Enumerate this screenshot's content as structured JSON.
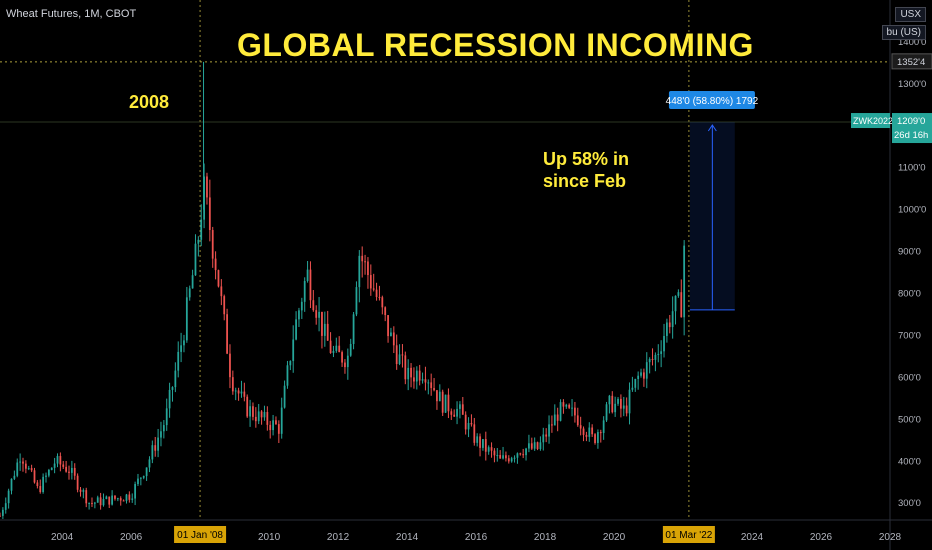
{
  "header": {
    "symbol_title": "Wheat Futures, 1M, CBOT",
    "currency": "USX",
    "unit": "bu (US)"
  },
  "annotations": {
    "title": "GLOBAL RECESSION INCOMING",
    "label_2008": "2008",
    "up_line1": "Up 58% in",
    "up_line2": "since Feb",
    "measure_label": "448'0 (58.80%) 1792"
  },
  "price_tags": {
    "hline_price": "1352'4",
    "last_price": "1209'0",
    "ticker": "ZWK2022",
    "countdown": "26d 16h"
  },
  "colors": {
    "up": "#26a69a",
    "down": "#ef5350",
    "accent": "#ffeb3b",
    "measure": "#2962ff",
    "grid_line": "#d8c64c"
  },
  "chart_data": {
    "type": "candlestick",
    "title": "GLOBAL RECESSION INCOMING",
    "xlabel": "",
    "ylabel": "",
    "x_ticks": [
      "2004",
      "2006",
      "2008",
      "2010",
      "2012",
      "2014",
      "2016",
      "2018",
      "2020",
      "2022",
      "2024",
      "2026",
      "2028"
    ],
    "x_tick_years": [
      2004,
      2006,
      2008,
      2010,
      2012,
      2014,
      2016,
      2018,
      2020,
      2022,
      2024,
      2026,
      2028
    ],
    "x_highlight_labels": [
      "01 Jan '08",
      "01 Mar '22"
    ],
    "x_highlight_years": [
      2008.0,
      2022.17
    ],
    "y_ticks": [
      "300'0",
      "400'0",
      "500'0",
      "600'0",
      "700'0",
      "800'0",
      "900'0",
      "1000'0",
      "1100'0",
      "1200'0",
      "1300'0",
      "1400'0"
    ],
    "y_tick_values": [
      300,
      400,
      500,
      600,
      700,
      800,
      900,
      1000,
      1100,
      1200,
      1300,
      1400
    ],
    "xlim": [
      2002.2,
      2028.0
    ],
    "ylim": [
      260,
      1500
    ],
    "hline_value": 1352.5,
    "last_value": 1209,
    "measure_range": [
      761,
      1209
    ],
    "measure_start_year": 2022.2,
    "measure_end_year": 2023.5,
    "candles_start_year": 2002.2,
    "candles_step_years": 0.08333,
    "anchors": [
      [
        2002.2,
        270
      ],
      [
        2002.8,
        420
      ],
      [
        2003.3,
        330
      ],
      [
        2003.8,
        400
      ],
      [
        2004.2,
        380
      ],
      [
        2004.8,
        300
      ],
      [
        2005.5,
        310
      ],
      [
        2006.0,
        320
      ],
      [
        2006.5,
        400
      ],
      [
        2007.0,
        500
      ],
      [
        2007.5,
        700
      ],
      [
        2007.9,
        900
      ],
      [
        2008.1,
        1050
      ],
      [
        2008.5,
        850
      ],
      [
        2008.9,
        600
      ],
      [
        2009.3,
        530
      ],
      [
        2009.8,
        500
      ],
      [
        2010.3,
        480
      ],
      [
        2010.7,
        700
      ],
      [
        2011.1,
        850
      ],
      [
        2011.6,
        700
      ],
      [
        2011.9,
        650
      ],
      [
        2012.3,
        650
      ],
      [
        2012.6,
        900
      ],
      [
        2013.0,
        820
      ],
      [
        2013.5,
        700
      ],
      [
        2014.0,
        600
      ],
      [
        2014.5,
        620
      ],
      [
        2015.0,
        540
      ],
      [
        2015.5,
        520
      ],
      [
        2016.0,
        450
      ],
      [
        2016.7,
        400
      ],
      [
        2017.3,
        430
      ],
      [
        2017.8,
        430
      ],
      [
        2018.4,
        520
      ],
      [
        2018.9,
        510
      ],
      [
        2019.4,
        450
      ],
      [
        2019.9,
        540
      ],
      [
        2020.3,
        520
      ],
      [
        2020.7,
        600
      ],
      [
        2021.2,
        650
      ],
      [
        2021.7,
        760
      ],
      [
        2022.0,
        780
      ],
      [
        2022.1,
        1200
      ]
    ]
  }
}
